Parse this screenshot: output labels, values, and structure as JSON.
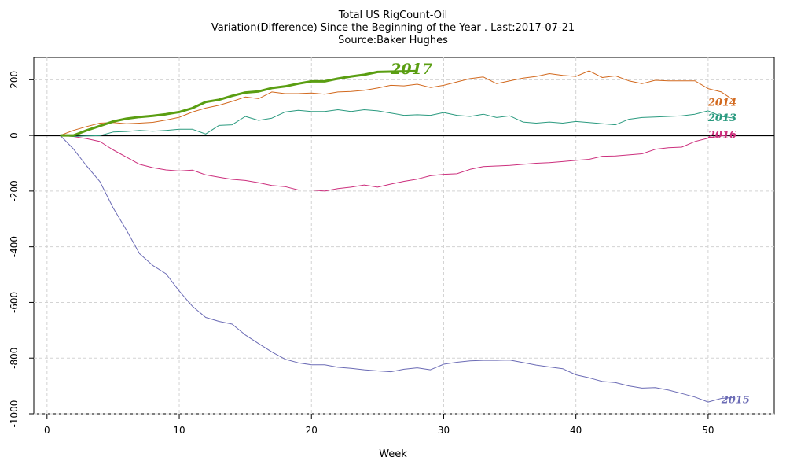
{
  "chart_data": {
    "type": "line",
    "title": "Total US RigCount-Oil",
    "subtitle": "Variation(Difference) Since the Beginning of the Year . Last:2017-07-21",
    "source": "Source:Baker Hughes",
    "xlabel": "Week",
    "ylabel": "",
    "xlim": [
      -1,
      55
    ],
    "ylim": [
      -1000,
      280
    ],
    "xticks": [
      0,
      10,
      20,
      30,
      40,
      50
    ],
    "yticks": [
      -1000,
      -800,
      -600,
      -400,
      -200,
      0,
      200
    ],
    "grid": true,
    "zero_line": true,
    "series": [
      {
        "name": "2015",
        "color": "#6b6bb5",
        "width": 1,
        "x": [
          1,
          2,
          3,
          4,
          5,
          6,
          7,
          8,
          9,
          10,
          11,
          12,
          13,
          14,
          15,
          16,
          17,
          18,
          19,
          20,
          21,
          22,
          23,
          24,
          25,
          26,
          27,
          28,
          29,
          30,
          31,
          32,
          33,
          34,
          35,
          36,
          37,
          38,
          39,
          40,
          41,
          42,
          43,
          44,
          45,
          46,
          47,
          48,
          49,
          50,
          51,
          52
        ],
        "values": [
          0,
          -49,
          -110,
          -166,
          -260,
          -340,
          -425,
          -467,
          -497,
          -559,
          -614,
          -654,
          -668,
          -678,
          -717,
          -748,
          -778,
          -804,
          -817,
          -824,
          -824,
          -833,
          -837,
          -842,
          -846,
          -849,
          -840,
          -835,
          -842,
          -822,
          -815,
          -810,
          -808,
          -808,
          -807,
          -816,
          -825,
          -832,
          -838,
          -860,
          -871,
          -884,
          -888,
          -900,
          -908,
          -906,
          -915,
          -927,
          -940,
          -958,
          -945,
          -941
        ]
      },
      {
        "name": "2016",
        "color": "#cc2f7d",
        "width": 1,
        "x": [
          1,
          2,
          3,
          4,
          5,
          6,
          7,
          8,
          9,
          10,
          11,
          12,
          13,
          14,
          15,
          16,
          17,
          18,
          19,
          20,
          21,
          22,
          23,
          24,
          25,
          26,
          27,
          28,
          29,
          30,
          31,
          32,
          33,
          34,
          35,
          36,
          37,
          38,
          39,
          40,
          41,
          42,
          43,
          44,
          45,
          46,
          47,
          48,
          49,
          50,
          51,
          52
        ],
        "values": [
          0,
          -4,
          -12,
          -22,
          -52,
          -78,
          -104,
          -116,
          -124,
          -128,
          -125,
          -142,
          -150,
          -158,
          -162,
          -170,
          -180,
          -184,
          -196,
          -196,
          -200,
          -191,
          -186,
          -178,
          -186,
          -175,
          -165,
          -157,
          -145,
          -140,
          -138,
          -122,
          -112,
          -110,
          -108,
          -104,
          -100,
          -98,
          -94,
          -90,
          -86,
          -75,
          -74,
          -70,
          -66,
          -50,
          -44,
          -42,
          -22,
          -10,
          -2,
          4
        ]
      },
      {
        "name": "2013",
        "color": "#2a9a7f",
        "width": 1,
        "x": [
          1,
          2,
          3,
          4,
          5,
          6,
          7,
          8,
          9,
          10,
          11,
          12,
          13,
          14,
          15,
          16,
          17,
          18,
          19,
          20,
          21,
          22,
          23,
          24,
          25,
          26,
          27,
          28,
          29,
          30,
          31,
          32,
          33,
          34,
          35,
          36,
          37,
          38,
          39,
          40,
          41,
          42,
          43,
          44,
          45,
          46,
          47,
          48,
          49,
          50,
          51,
          52
        ],
        "values": [
          0,
          -4,
          -2,
          -1,
          12,
          14,
          18,
          15,
          18,
          22,
          22,
          5,
          36,
          38,
          68,
          54,
          62,
          84,
          90,
          86,
          86,
          92,
          86,
          92,
          88,
          80,
          72,
          74,
          72,
          82,
          72,
          68,
          76,
          64,
          70,
          48,
          44,
          48,
          44,
          50,
          46,
          42,
          38,
          58,
          64,
          66,
          68,
          70,
          76,
          88,
          68,
          62
        ]
      },
      {
        "name": "2014",
        "color": "#d2691e",
        "width": 1,
        "x": [
          1,
          2,
          3,
          4,
          5,
          6,
          7,
          8,
          9,
          10,
          11,
          12,
          13,
          14,
          15,
          16,
          17,
          18,
          19,
          20,
          21,
          22,
          23,
          24,
          25,
          26,
          27,
          28,
          29,
          30,
          31,
          32,
          33,
          34,
          35,
          36,
          37,
          38,
          39,
          40,
          41,
          42,
          43,
          44,
          45,
          46,
          47,
          48,
          49,
          50,
          51,
          52
        ],
        "values": [
          0,
          18,
          32,
          44,
          46,
          42,
          44,
          47,
          55,
          65,
          84,
          98,
          108,
          122,
          138,
          132,
          156,
          150,
          150,
          152,
          148,
          156,
          158,
          162,
          170,
          180,
          178,
          184,
          172,
          180,
          192,
          204,
          210,
          186,
          196,
          206,
          212,
          222,
          216,
          212,
          232,
          208,
          214,
          196,
          186,
          198,
          196,
          196,
          196,
          168,
          156,
          124
        ]
      },
      {
        "name": "2017",
        "color": "#5a9e12",
        "width": 3,
        "x": [
          1,
          2,
          3,
          4,
          5,
          6,
          7,
          8,
          9,
          10,
          11,
          12,
          13,
          14,
          15,
          16,
          17,
          18,
          19,
          20,
          21,
          22,
          23,
          24,
          25,
          26,
          27,
          28
        ],
        "values": [
          0,
          0,
          18,
          34,
          50,
          60,
          66,
          70,
          76,
          84,
          98,
          120,
          128,
          142,
          154,
          158,
          170,
          176,
          186,
          194,
          194,
          204,
          212,
          218,
          228,
          229,
          230,
          231
        ]
      }
    ],
    "annotations": [
      {
        "text": "2017",
        "x": 26,
        "y": 232,
        "color": "#5a9e12",
        "size": "large"
      },
      {
        "text": "2014",
        "x": 50,
        "y": 118,
        "color": "#d2691e",
        "size": "small"
      },
      {
        "text": "2013",
        "x": 50,
        "y": 62,
        "color": "#2a9a7f",
        "size": "small"
      },
      {
        "text": "2016",
        "x": 50,
        "y": 2,
        "color": "#cc2f7d",
        "size": "small"
      },
      {
        "text": "2015",
        "x": 51,
        "y": -950,
        "color": "#6b6bb5",
        "size": "small"
      }
    ]
  }
}
